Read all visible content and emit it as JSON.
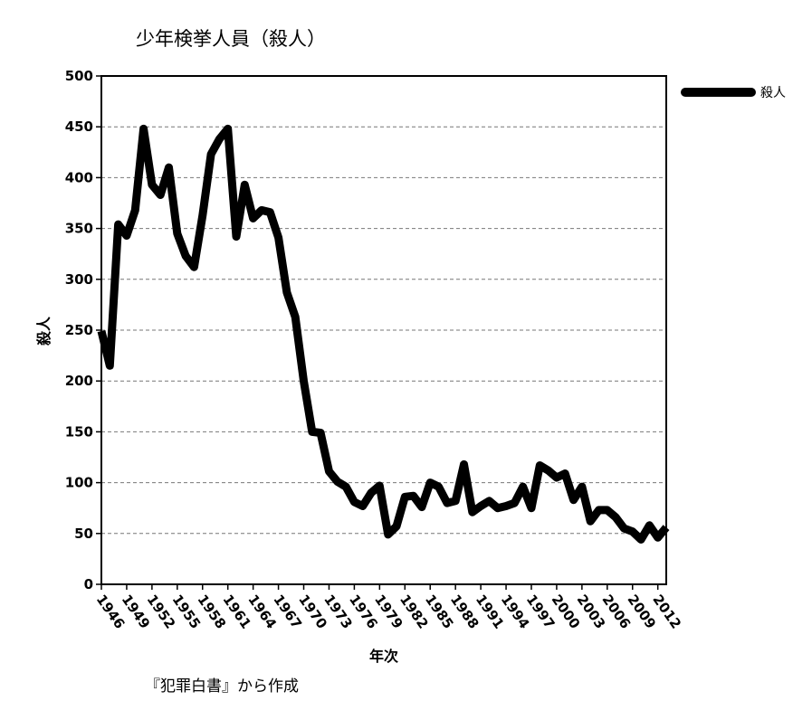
{
  "chart_data": {
    "type": "line",
    "title": "少年検挙人員（殺人）",
    "xlabel": "年次",
    "ylabel": "殺人",
    "source_note": "『犯罪白書』から作成",
    "ylim": [
      0,
      500
    ],
    "y_ticks": [
      "0",
      "50",
      "100",
      "150",
      "200",
      "250",
      "300",
      "350",
      "400",
      "450",
      "500"
    ],
    "xlim": [
      1946,
      2013
    ],
    "x_ticks": [
      "1946",
      "1949",
      "1952",
      "1955",
      "1958",
      "1961",
      "1964",
      "1967",
      "1970",
      "1973",
      "1976",
      "1979",
      "1982",
      "1985",
      "1988",
      "1991",
      "1994",
      "1997",
      "2000",
      "2003",
      "2006",
      "2009",
      "2012"
    ],
    "grid": "horizontal dashed",
    "legend_position": "right",
    "series": [
      {
        "name": "殺人",
        "color": "#000000",
        "x": [
          1946,
          1947,
          1948,
          1949,
          1950,
          1951,
          1952,
          1953,
          1954,
          1955,
          1956,
          1957,
          1958,
          1959,
          1960,
          1961,
          1962,
          1963,
          1964,
          1965,
          1966,
          1967,
          1968,
          1969,
          1970,
          1971,
          1972,
          1973,
          1974,
          1975,
          1976,
          1977,
          1978,
          1979,
          1980,
          1981,
          1982,
          1983,
          1984,
          1985,
          1986,
          1987,
          1988,
          1989,
          1990,
          1991,
          1992,
          1993,
          1994,
          1995,
          1996,
          1997,
          1998,
          1999,
          2000,
          2001,
          2002,
          2003,
          2004,
          2005,
          2006,
          2007,
          2008,
          2009,
          2010,
          2011,
          2012,
          2013
        ],
        "values": [
          249,
          215,
          354,
          343,
          368,
          448,
          393,
          383,
          410,
          345,
          323,
          312,
          363,
          423,
          438,
          448,
          342,
          393,
          360,
          368,
          366,
          341,
          287,
          263,
          200,
          150,
          149,
          111,
          101,
          96,
          81,
          77,
          90,
          97,
          49,
          57,
          86,
          87,
          76,
          100,
          96,
          80,
          82,
          118,
          71,
          77,
          82,
          75,
          77,
          80,
          96,
          75,
          117,
          112,
          105,
          109,
          83,
          96,
          62,
          73,
          73,
          66,
          55,
          52,
          44,
          58,
          46,
          56
        ]
      }
    ]
  }
}
